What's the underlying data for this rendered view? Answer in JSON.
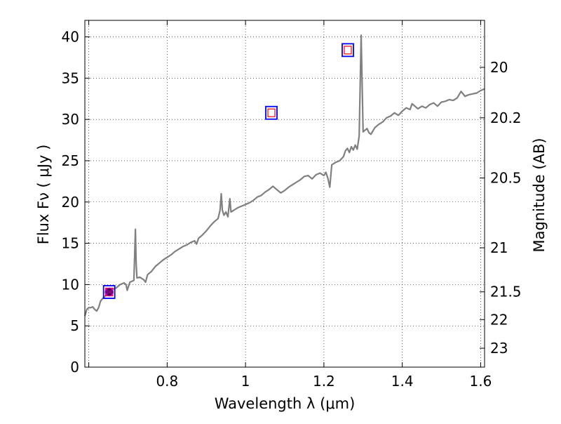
{
  "chart_data": {
    "type": "line",
    "xlabel": "Wavelength  λ (μm)",
    "ylabel": "Flux  Fν  ( μJy )",
    "y2label": "Magnitude (AB)",
    "xlim": [
      0.59,
      1.61
    ],
    "ylim": [
      0,
      42
    ],
    "grid": true,
    "x_ticks": [
      {
        "value": 0.6,
        "label": ""
      },
      {
        "value": 0.8,
        "label": "0.8"
      },
      {
        "value": 1.0,
        "label": "1"
      },
      {
        "value": 1.2,
        "label": "1.2"
      },
      {
        "value": 1.4,
        "label": "1.4"
      },
      {
        "value": 1.6,
        "label": "1.6"
      }
    ],
    "y_ticks": [
      {
        "value": 0,
        "label": "0"
      },
      {
        "value": 5,
        "label": "5"
      },
      {
        "value": 10,
        "label": "10"
      },
      {
        "value": 15,
        "label": "15"
      },
      {
        "value": 20,
        "label": "20"
      },
      {
        "value": 25,
        "label": "25"
      },
      {
        "value": 30,
        "label": "30"
      },
      {
        "value": 35,
        "label": "35"
      },
      {
        "value": 40,
        "label": "40"
      }
    ],
    "magnitude_ticks": [
      {
        "mag": 20,
        "label": "20"
      },
      {
        "mag": 20.2,
        "label": "20.2"
      },
      {
        "mag": 20.5,
        "label": "20.5"
      },
      {
        "mag": 21,
        "label": "21"
      },
      {
        "mag": 21.5,
        "label": "21.5"
      },
      {
        "mag": 22,
        "label": "22"
      },
      {
        "mag": 23,
        "label": "23"
      }
    ],
    "series": [
      {
        "type": "line",
        "color": "#808080",
        "points": [
          [
            0.59,
            6.2
          ],
          [
            0.595,
            7.0
          ],
          [
            0.6,
            7.2
          ],
          [
            0.605,
            7.2
          ],
          [
            0.61,
            7.3
          ],
          [
            0.615,
            7.0
          ],
          [
            0.62,
            6.8
          ],
          [
            0.625,
            7.2
          ],
          [
            0.63,
            8.0
          ],
          [
            0.635,
            8.3
          ],
          [
            0.64,
            8.5
          ],
          [
            0.645,
            8.8
          ],
          [
            0.65,
            9.0
          ],
          [
            0.655,
            9.3
          ],
          [
            0.66,
            9.4
          ],
          [
            0.665,
            9.5
          ],
          [
            0.67,
            9.6
          ],
          [
            0.675,
            9.8
          ],
          [
            0.68,
            10.0
          ],
          [
            0.685,
            10.1
          ],
          [
            0.69,
            10.2
          ],
          [
            0.695,
            10.0
          ],
          [
            0.698,
            9.3
          ],
          [
            0.7,
            9.6
          ],
          [
            0.705,
            10.3
          ],
          [
            0.71,
            10.4
          ],
          [
            0.715,
            10.5
          ],
          [
            0.717,
            13.5
          ],
          [
            0.719,
            16.7
          ],
          [
            0.721,
            12.5
          ],
          [
            0.723,
            10.8
          ],
          [
            0.73,
            10.9
          ],
          [
            0.74,
            10.6
          ],
          [
            0.745,
            10.3
          ],
          [
            0.75,
            11.2
          ],
          [
            0.76,
            11.6
          ],
          [
            0.77,
            12.2
          ],
          [
            0.78,
            12.6
          ],
          [
            0.79,
            13.0
          ],
          [
            0.8,
            13.3
          ],
          [
            0.81,
            13.6
          ],
          [
            0.82,
            14.0
          ],
          [
            0.83,
            14.3
          ],
          [
            0.84,
            14.6
          ],
          [
            0.85,
            14.8
          ],
          [
            0.86,
            15.1
          ],
          [
            0.87,
            15.3
          ],
          [
            0.875,
            14.9
          ],
          [
            0.88,
            15.6
          ],
          [
            0.89,
            16.0
          ],
          [
            0.9,
            16.5
          ],
          [
            0.91,
            17.1
          ],
          [
            0.92,
            17.6
          ],
          [
            0.93,
            18.0
          ],
          [
            0.935,
            19.0
          ],
          [
            0.938,
            21.0
          ],
          [
            0.941,
            19.0
          ],
          [
            0.945,
            18.4
          ],
          [
            0.95,
            18.8
          ],
          [
            0.955,
            18.2
          ],
          [
            0.96,
            20.4
          ],
          [
            0.963,
            18.8
          ],
          [
            0.97,
            19.0
          ],
          [
            0.98,
            19.3
          ],
          [
            0.99,
            19.5
          ],
          [
            1.0,
            19.7
          ],
          [
            1.01,
            19.9
          ],
          [
            1.02,
            20.2
          ],
          [
            1.03,
            20.6
          ],
          [
            1.04,
            20.8
          ],
          [
            1.05,
            21.2
          ],
          [
            1.06,
            21.5
          ],
          [
            1.07,
            21.9
          ],
          [
            1.08,
            21.5
          ],
          [
            1.09,
            21.1
          ],
          [
            1.1,
            21.4
          ],
          [
            1.11,
            21.8
          ],
          [
            1.12,
            22.1
          ],
          [
            1.13,
            22.4
          ],
          [
            1.14,
            22.7
          ],
          [
            1.15,
            23.1
          ],
          [
            1.16,
            23.2
          ],
          [
            1.17,
            22.8
          ],
          [
            1.18,
            23.3
          ],
          [
            1.19,
            23.5
          ],
          [
            1.2,
            23.2
          ],
          [
            1.205,
            23.6
          ],
          [
            1.21,
            22.9
          ],
          [
            1.215,
            21.8
          ],
          [
            1.22,
            24.5
          ],
          [
            1.23,
            24.8
          ],
          [
            1.24,
            25.0
          ],
          [
            1.25,
            25.5
          ],
          [
            1.255,
            26.2
          ],
          [
            1.26,
            26.5
          ],
          [
            1.265,
            26.0
          ],
          [
            1.27,
            26.7
          ],
          [
            1.275,
            26.3
          ],
          [
            1.28,
            26.9
          ],
          [
            1.285,
            26.4
          ],
          [
            1.29,
            28.0
          ],
          [
            1.295,
            40.2
          ],
          [
            1.3,
            28.5
          ],
          [
            1.305,
            28.7
          ],
          [
            1.31,
            28.9
          ],
          [
            1.315,
            28.4
          ],
          [
            1.32,
            28.2
          ],
          [
            1.33,
            29.0
          ],
          [
            1.34,
            29.4
          ],
          [
            1.35,
            29.7
          ],
          [
            1.36,
            30.2
          ],
          [
            1.37,
            30.4
          ],
          [
            1.38,
            30.8
          ],
          [
            1.39,
            30.5
          ],
          [
            1.4,
            31.0
          ],
          [
            1.41,
            31.4
          ],
          [
            1.42,
            31.2
          ],
          [
            1.425,
            31.9
          ],
          [
            1.43,
            31.7
          ],
          [
            1.44,
            31.3
          ],
          [
            1.45,
            31.6
          ],
          [
            1.46,
            31.4
          ],
          [
            1.47,
            31.8
          ],
          [
            1.48,
            32.0
          ],
          [
            1.49,
            31.6
          ],
          [
            1.5,
            32.1
          ],
          [
            1.51,
            32.2
          ],
          [
            1.52,
            32.4
          ],
          [
            1.53,
            32.3
          ],
          [
            1.54,
            32.6
          ],
          [
            1.55,
            33.4
          ],
          [
            1.56,
            32.8
          ],
          [
            1.57,
            33.0
          ],
          [
            1.58,
            33.1
          ],
          [
            1.59,
            33.2
          ],
          [
            1.6,
            33.5
          ],
          [
            1.61,
            33.7
          ]
        ]
      },
      {
        "type": "photometry_boxes",
        "color": "#0000ff",
        "points": [
          [
            0.652,
            9.1
          ],
          [
            1.066,
            30.8
          ],
          [
            1.261,
            38.4
          ]
        ]
      },
      {
        "type": "model_squares",
        "color": "#ff0000",
        "points": [
          [
            0.652,
            9.1
          ],
          [
            1.066,
            30.8
          ],
          [
            1.261,
            38.4
          ]
        ]
      },
      {
        "type": "measured_point",
        "color": "#800080",
        "points": [
          [
            0.652,
            9.1
          ]
        ]
      }
    ]
  }
}
